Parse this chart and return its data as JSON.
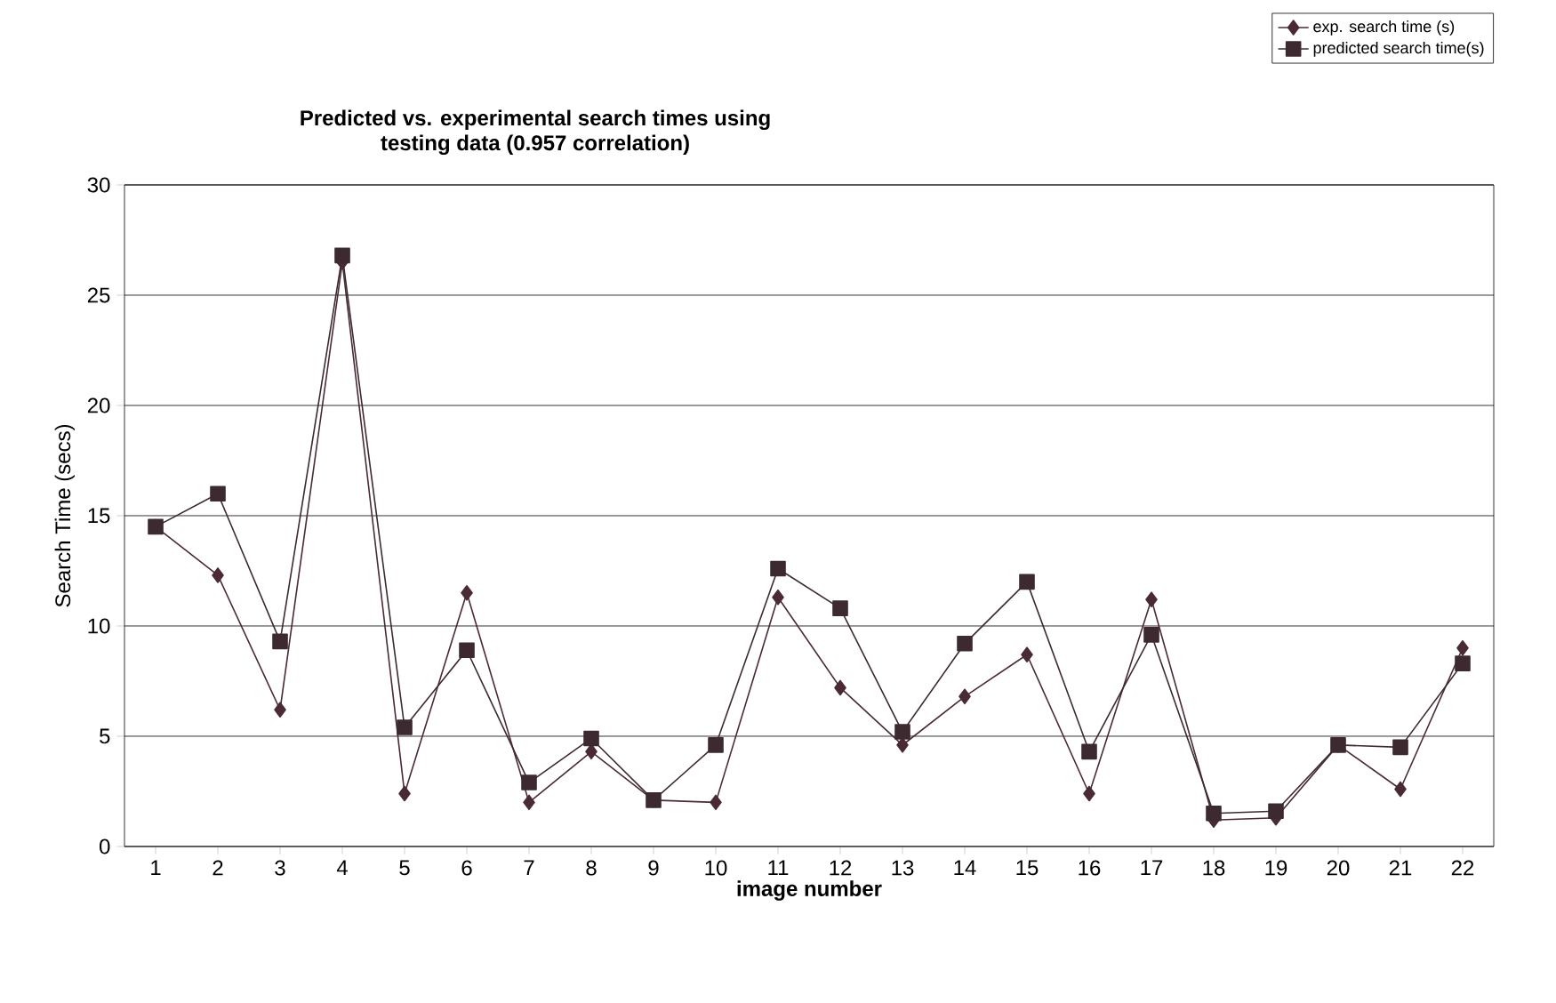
{
  "chart_data": {
    "type": "line",
    "title": "Predicted vs. experimental search times using testing data (0.957 correlation)",
    "xlabel": "image number",
    "ylabel": "Search Time (secs)",
    "categories": [
      "1",
      "2",
      "3",
      "4",
      "5",
      "6",
      "7",
      "8",
      "9",
      "10",
      "11",
      "12",
      "13",
      "14",
      "15",
      "16",
      "17",
      "18",
      "19",
      "20",
      "21",
      "22"
    ],
    "series": [
      {
        "name": "exp. search time (s)",
        "color": "#4a2a35",
        "marker": "diamond",
        "values": [
          14.5,
          12.3,
          6.2,
          26.5,
          2.4,
          11.5,
          2.0,
          4.3,
          2.1,
          2.0,
          11.3,
          7.2,
          4.6,
          6.8,
          8.7,
          2.4,
          11.2,
          1.2,
          1.3,
          4.6,
          2.6,
          9.0
        ]
      },
      {
        "name": "predicted search time(s)",
        "color": "#3c2a30",
        "marker": "square",
        "values": [
          14.5,
          16.0,
          9.3,
          26.8,
          5.4,
          8.9,
          2.9,
          4.9,
          2.1,
          4.6,
          12.6,
          10.8,
          5.2,
          9.2,
          12.0,
          4.3,
          9.6,
          1.5,
          1.6,
          4.6,
          4.5,
          8.3
        ]
      }
    ],
    "ylim": [
      0,
      30
    ],
    "yticks": [
      0,
      5,
      10,
      15,
      20,
      25,
      30
    ],
    "grid": "y",
    "legend": "top right",
    "line_style": "solid"
  }
}
